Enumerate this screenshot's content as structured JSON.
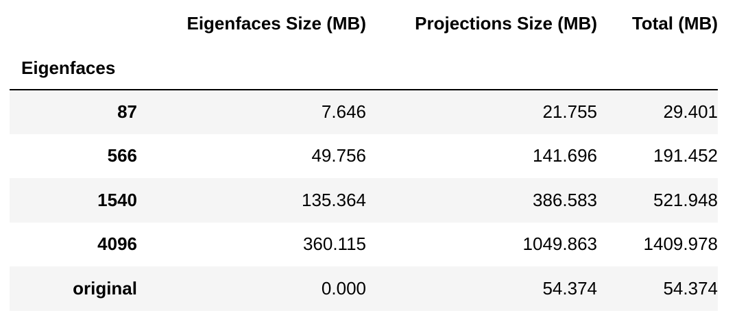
{
  "table": {
    "columns": [
      "Eigenfaces Size (MB)",
      "Projections Size (MB)",
      "Total (MB)"
    ],
    "index_name": "Eigenfaces",
    "rows": [
      {
        "index": "87",
        "eigenfaces_size": "7.646",
        "projections_size": "21.755",
        "total": "29.401"
      },
      {
        "index": "566",
        "eigenfaces_size": "49.756",
        "projections_size": "141.696",
        "total": "191.452"
      },
      {
        "index": "1540",
        "eigenfaces_size": "135.364",
        "projections_size": "386.583",
        "total": "521.948"
      },
      {
        "index": "4096",
        "eigenfaces_size": "360.115",
        "projections_size": "1049.863",
        "total": "1409.978"
      },
      {
        "index": "original",
        "eigenfaces_size": "0.000",
        "projections_size": "54.374",
        "total": "54.374"
      }
    ]
  }
}
